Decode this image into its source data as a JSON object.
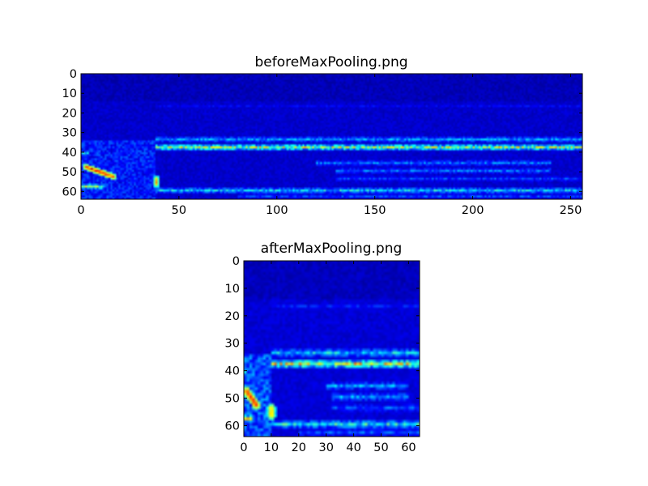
{
  "chart_data": [
    {
      "type": "heatmap",
      "title": "beforeMaxPooling.png",
      "colormap": "jet",
      "shape": [
        64,
        256
      ],
      "xlim": [
        0,
        256
      ],
      "ylim": [
        64,
        0
      ],
      "xticks": [
        0,
        50,
        100,
        150,
        200,
        250
      ],
      "yticks": [
        0,
        10,
        20,
        30,
        40,
        50,
        60
      ],
      "value_range": [
        0,
        1
      ],
      "background": 0.05,
      "features": [
        {
          "kind": "region",
          "x": [
            0,
            38
          ],
          "y": [
            34,
            64
          ],
          "value": 0.15
        },
        {
          "kind": "band",
          "row": 37,
          "x": [
            38,
            256
          ],
          "value": 0.55
        },
        {
          "kind": "band",
          "row": 33,
          "x": [
            38,
            256
          ],
          "value": 0.3
        },
        {
          "kind": "band",
          "row": 16,
          "x": [
            38,
            256
          ],
          "value": 0.12
        },
        {
          "kind": "band",
          "row": 59,
          "x": [
            38,
            256
          ],
          "value": 0.35
        },
        {
          "kind": "band",
          "row": 62,
          "x": [
            80,
            256
          ],
          "value": 0.2
        },
        {
          "kind": "band",
          "row": 45,
          "x": [
            120,
            240
          ],
          "value": 0.25
        },
        {
          "kind": "band",
          "row": 49,
          "x": [
            130,
            240
          ],
          "value": 0.25
        },
        {
          "kind": "band",
          "row": 53,
          "x": [
            130,
            256
          ],
          "value": 0.2
        },
        {
          "kind": "band",
          "row": 57,
          "x": [
            0,
            12
          ],
          "value": 0.5
        },
        {
          "kind": "band",
          "row": 40,
          "x": [
            0,
            4
          ],
          "value": 0.35
        },
        {
          "kind": "line",
          "from": [
            2,
            47
          ],
          "to": [
            16,
            52
          ],
          "value": 0.95
        },
        {
          "kind": "line",
          "from": [
            38,
            53
          ],
          "to": [
            38,
            56
          ],
          "value": 0.75
        }
      ]
    },
    {
      "type": "heatmap",
      "title": "afterMaxPooling.png",
      "colormap": "jet",
      "shape": [
        64,
        64
      ],
      "xlim": [
        0,
        64
      ],
      "ylim": [
        64,
        0
      ],
      "xticks": [
        0,
        10,
        20,
        30,
        40,
        50,
        60
      ],
      "yticks": [
        0,
        10,
        20,
        30,
        40,
        50,
        60
      ],
      "value_range": [
        0,
        1
      ],
      "background": 0.06,
      "features": [
        {
          "kind": "region",
          "x": [
            0,
            9.5
          ],
          "y": [
            34,
            64
          ],
          "value": 0.2
        },
        {
          "kind": "band",
          "row": 37,
          "x": [
            9.5,
            64
          ],
          "value": 0.6
        },
        {
          "kind": "band",
          "row": 33,
          "x": [
            9.5,
            64
          ],
          "value": 0.35
        },
        {
          "kind": "band",
          "row": 16,
          "x": [
            9.5,
            64
          ],
          "value": 0.15
        },
        {
          "kind": "band",
          "row": 59,
          "x": [
            9.5,
            64
          ],
          "value": 0.4
        },
        {
          "kind": "band",
          "row": 62,
          "x": [
            20,
            64
          ],
          "value": 0.22
        },
        {
          "kind": "band",
          "row": 45,
          "x": [
            30,
            60
          ],
          "value": 0.3
        },
        {
          "kind": "band",
          "row": 49,
          "x": [
            32,
            60
          ],
          "value": 0.3
        },
        {
          "kind": "band",
          "row": 53,
          "x": [
            32,
            64
          ],
          "value": 0.22
        },
        {
          "kind": "band",
          "row": 57,
          "x": [
            0,
            3
          ],
          "value": 0.55
        },
        {
          "kind": "band",
          "row": 40,
          "x": [
            0,
            1
          ],
          "value": 0.4
        },
        {
          "kind": "line",
          "from": [
            0.5,
            47
          ],
          "to": [
            4,
            52
          ],
          "value": 0.95
        },
        {
          "kind": "line",
          "from": [
            9.5,
            53
          ],
          "to": [
            9.5,
            56
          ],
          "value": 0.8
        }
      ]
    }
  ]
}
